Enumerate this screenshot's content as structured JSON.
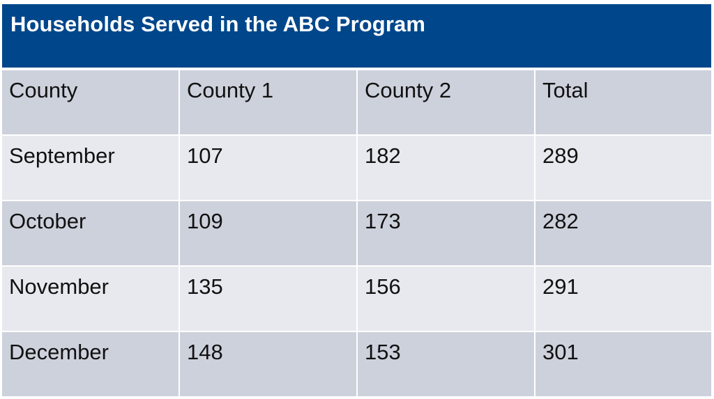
{
  "chart_data": {
    "type": "table",
    "title": "Households Served in the ABC Program",
    "columns": [
      "County",
      "County 1",
      "County 2",
      "Total"
    ],
    "rows": [
      {
        "label": "September",
        "values": [
          "107",
          "182",
          "289"
        ]
      },
      {
        "label": "October",
        "values": [
          "109",
          "173",
          "282"
        ]
      },
      {
        "label": "November",
        "values": [
          "135",
          "156",
          "291"
        ]
      },
      {
        "label": "December",
        "values": [
          "148",
          "153",
          "301"
        ]
      }
    ]
  },
  "colors": {
    "title_bg": "#00468b",
    "title_text": "#ffffff",
    "row_dark": "#cdd1dc",
    "row_light": "#e8e9ee"
  }
}
